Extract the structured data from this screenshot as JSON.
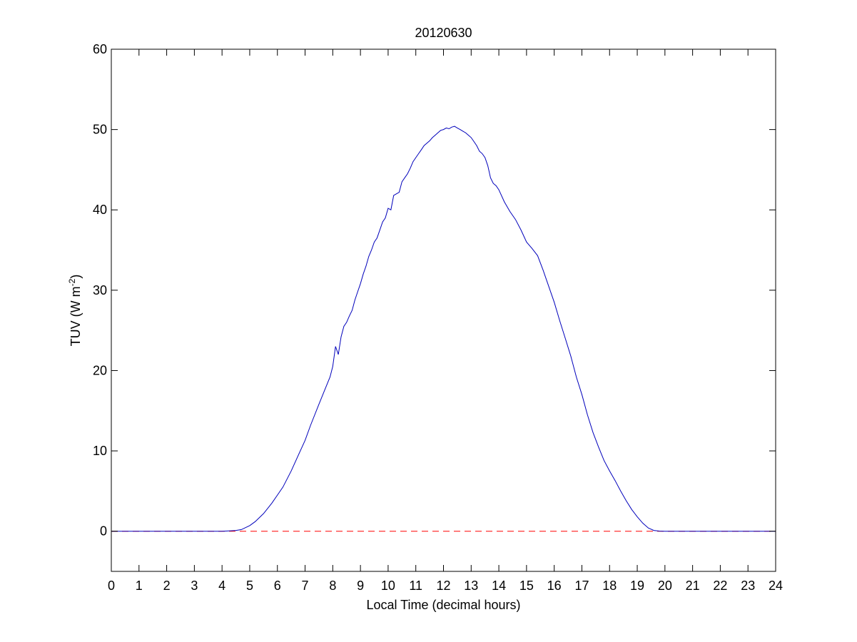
{
  "chart_data": {
    "type": "line",
    "title": "20120630",
    "xlabel": "Local Time (decimal hours)",
    "ylabel": {
      "prefix": "TUV (W m",
      "superscript": "-2",
      "suffix": ")"
    },
    "xlim": [
      0,
      24
    ],
    "ylim": [
      -5,
      60
    ],
    "xticks": [
      0,
      1,
      2,
      3,
      4,
      5,
      6,
      7,
      8,
      9,
      10,
      11,
      12,
      13,
      14,
      15,
      16,
      17,
      18,
      19,
      20,
      21,
      22,
      23,
      24
    ],
    "yticks": [
      0,
      10,
      20,
      30,
      40,
      50,
      60
    ],
    "grid": false,
    "legend": "none",
    "colors": {
      "series": "#0000bb",
      "reference": "#ff0000",
      "axes": "#000000",
      "background": "#ffffff"
    },
    "series": [
      {
        "style": "solid",
        "x": [
          0,
          1,
          2,
          3,
          4,
          4.3,
          4.5,
          4.7,
          5.0,
          5.2,
          5.5,
          5.8,
          6.0,
          6.2,
          6.5,
          6.8,
          7.0,
          7.2,
          7.5,
          7.7,
          7.9,
          8.0,
          8.1,
          8.2,
          8.3,
          8.4,
          8.5,
          8.6,
          8.7,
          8.8,
          8.9,
          9.0,
          9.1,
          9.2,
          9.3,
          9.4,
          9.5,
          9.6,
          9.7,
          9.8,
          9.9,
          10.0,
          10.1,
          10.2,
          10.3,
          10.4,
          10.5,
          10.6,
          10.7,
          10.8,
          10.9,
          11.0,
          11.1,
          11.2,
          11.3,
          11.4,
          11.5,
          11.6,
          11.7,
          11.8,
          11.9,
          12.0,
          12.1,
          12.2,
          12.3,
          12.4,
          12.5,
          12.6,
          12.7,
          12.8,
          12.9,
          13.0,
          13.1,
          13.2,
          13.3,
          13.4,
          13.5,
          13.6,
          13.7,
          13.8,
          13.9,
          14.0,
          14.2,
          14.4,
          14.6,
          14.8,
          15.0,
          15.2,
          15.4,
          15.6,
          15.8,
          16.0,
          16.2,
          16.4,
          16.6,
          16.8,
          17.0,
          17.2,
          17.4,
          17.6,
          17.8,
          18.0,
          18.2,
          18.4,
          18.6,
          18.8,
          19.0,
          19.2,
          19.4,
          19.6,
          19.8,
          20.0,
          20.2,
          20.5,
          21,
          22,
          23,
          24
        ],
        "values": [
          0,
          0,
          0,
          0,
          0,
          0.05,
          0.1,
          0.2,
          0.7,
          1.2,
          2.2,
          3.5,
          4.5,
          5.5,
          7.5,
          9.8,
          11.3,
          13.2,
          15.8,
          17.5,
          19.2,
          20.5,
          23.0,
          22.0,
          24.2,
          25.5,
          26.0,
          26.8,
          27.5,
          28.8,
          29.8,
          30.8,
          32.0,
          33.0,
          34.2,
          35.0,
          36.0,
          36.5,
          37.5,
          38.5,
          39.0,
          40.2,
          40.0,
          41.8,
          42.0,
          42.2,
          43.5,
          44.0,
          44.5,
          45.2,
          46.0,
          46.5,
          47.0,
          47.5,
          48.0,
          48.3,
          48.6,
          49.0,
          49.3,
          49.6,
          49.9,
          50.0,
          50.2,
          50.1,
          50.3,
          50.4,
          50.2,
          50.0,
          49.8,
          49.6,
          49.3,
          49.0,
          48.5,
          48.0,
          47.3,
          47.0,
          46.5,
          45.5,
          44.0,
          43.3,
          43.0,
          42.5,
          41.0,
          39.8,
          38.8,
          37.5,
          36.0,
          35.2,
          34.3,
          32.5,
          30.5,
          28.5,
          26.2,
          24.0,
          21.8,
          19.2,
          17.0,
          14.5,
          12.3,
          10.5,
          8.8,
          7.5,
          6.3,
          5.0,
          3.8,
          2.7,
          1.8,
          1.0,
          0.4,
          0.1,
          0.02,
          0,
          0,
          0,
          0,
          0,
          0,
          0
        ]
      },
      {
        "style": "dashed",
        "x": [
          0,
          24
        ],
        "values": [
          0,
          0
        ]
      }
    ]
  }
}
